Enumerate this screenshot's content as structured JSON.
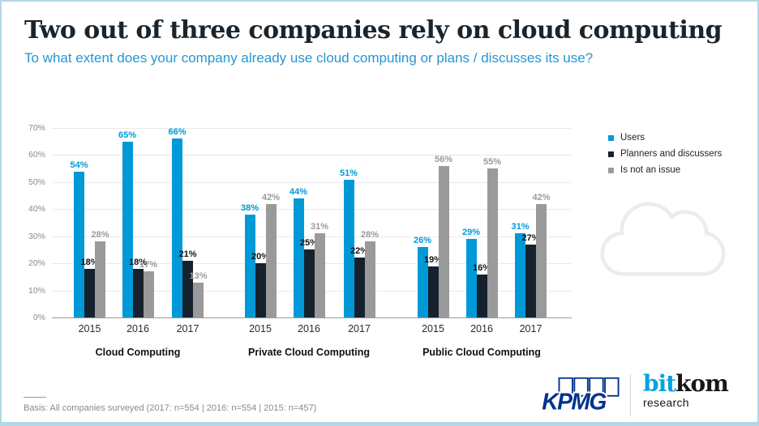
{
  "header": {
    "title": "Two out of three companies rely on cloud computing",
    "subtitle": "To what extent does your company already use cloud computing or plans / discusses its use?"
  },
  "colors": {
    "users": "#0099d8",
    "planners": "#15222d",
    "not_issue": "#9a9a9a",
    "users_label": "#0099d8",
    "planners_label": "#111111",
    "not_issue_label": "#9a9a9a",
    "frame_border": "#b2d8e6",
    "kpmg_blue": "#00338d",
    "bitkom_blue": "#00a3df"
  },
  "legend": {
    "items": [
      {
        "label": "Users",
        "color": "#0099d8",
        "label_color": "#0099d8"
      },
      {
        "label": "Planners and discussers",
        "color": "#15222d",
        "label_color": "#111111"
      },
      {
        "label": "Is not an issue",
        "color": "#9a9a9a",
        "label_color": "#9a9a9a"
      }
    ]
  },
  "chart_data": {
    "type": "bar",
    "title": "Two out of three companies rely on cloud computing",
    "xlabel": "",
    "ylabel": "",
    "ylim": [
      0,
      70
    ],
    "yticks": [
      "0%",
      "10%",
      "20%",
      "30%",
      "40%",
      "50%",
      "60%",
      "70%"
    ],
    "unit": "%",
    "grid": true,
    "legend_position": "right",
    "series_names": [
      "Users",
      "Planners and discussers",
      "Is not an issue"
    ],
    "groups": [
      {
        "label": "Cloud Computing",
        "categories": [
          "2015",
          "2016",
          "2017"
        ],
        "series": [
          {
            "name": "Users",
            "values": [
              54,
              65,
              66
            ]
          },
          {
            "name": "Planners and discussers",
            "values": [
              18,
              18,
              21
            ]
          },
          {
            "name": "Is not an issue",
            "values": [
              28,
              17,
              13
            ]
          }
        ]
      },
      {
        "label": "Private Cloud Computing",
        "categories": [
          "2015",
          "2016",
          "2017"
        ],
        "series": [
          {
            "name": "Users",
            "values": [
              38,
              44,
              51
            ]
          },
          {
            "name": "Planners and discussers",
            "values": [
              20,
              25,
              22
            ]
          },
          {
            "name": "Is not an issue",
            "values": [
              42,
              31,
              28
            ]
          }
        ]
      },
      {
        "label": "Public Cloud Computing",
        "categories": [
          "2015",
          "2016",
          "2017"
        ],
        "series": [
          {
            "name": "Users",
            "values": [
              26,
              29,
              31
            ]
          },
          {
            "name": "Planners and discussers",
            "values": [
              19,
              16,
              27
            ]
          },
          {
            "name": "Is not an issue",
            "values": [
              56,
              55,
              42
            ]
          }
        ]
      }
    ]
  },
  "footer": {
    "basis": "Basis: All companies surveyed (2017: n=554 | 2016: n=554 | 2015: n=457)"
  },
  "logos": {
    "kpmg": "KPMG",
    "bitkom_part1": "bit",
    "bitkom_part2": "kom",
    "bitkom_sub": "research"
  }
}
